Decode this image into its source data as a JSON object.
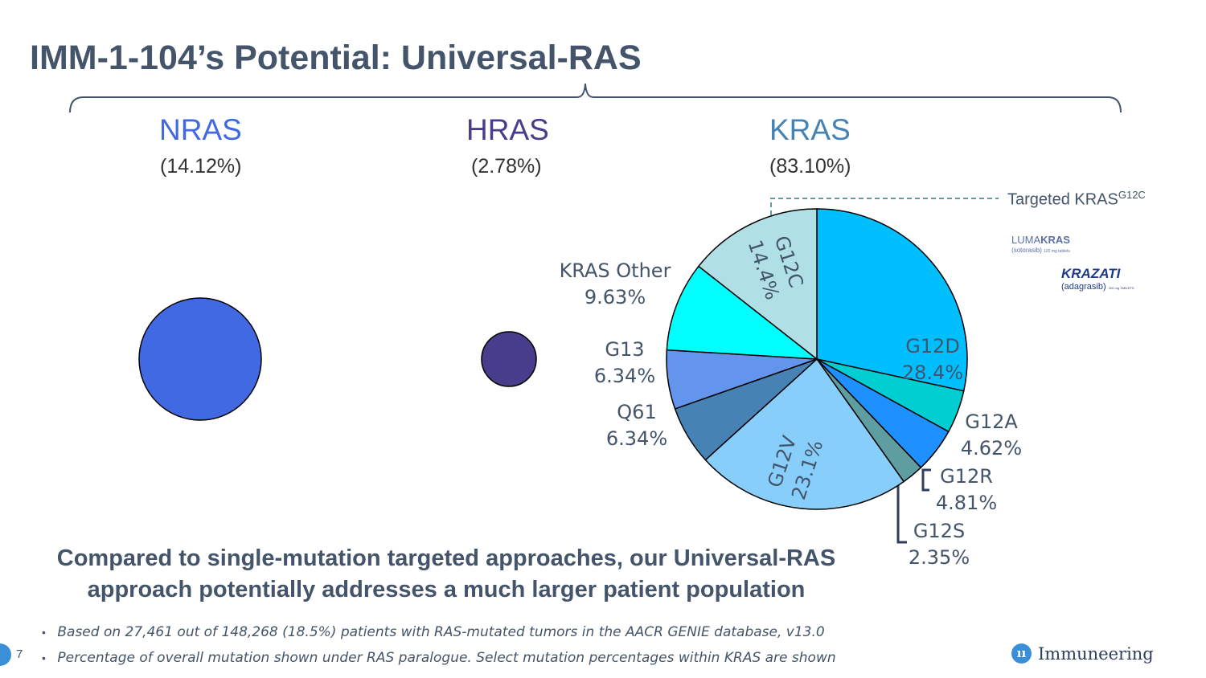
{
  "title": "IMM-1-104’s Potential: Universal-RAS",
  "paralogues": [
    {
      "name": "NRAS",
      "pct": "(14.12%)",
      "color": "#4169e1"
    },
    {
      "name": "HRAS",
      "pct": "(2.78%)",
      "color": "#483d8b"
    },
    {
      "name": "KRAS",
      "pct": "(83.10%)",
      "color": "#4682b4"
    }
  ],
  "targeted": {
    "text": "Targeted KRAS",
    "sup": "G12C"
  },
  "brands": {
    "lumakras_a": "LUMA",
    "lumakras_b": "KRAS",
    "lumakras_sub": "(sotorasib)",
    "lumakras_dose": "120 mg tablets",
    "krazati": "KRAZATI",
    "krazati_sub": "(adagrasib)",
    "krazati_dose": "200 mg TABLETS"
  },
  "chart_data": {
    "type": "pie",
    "title": "",
    "start": "12 o'clock, clockwise",
    "slices": [
      {
        "label": "G12D",
        "value": 28.4,
        "text": "28.4%",
        "color": "#00bfff"
      },
      {
        "label": "G12A",
        "value": 4.62,
        "text": "4.62%",
        "color": "#00ced1"
      },
      {
        "label": "G12R",
        "value": 4.81,
        "text": "4.81%",
        "color": "#1e90ff"
      },
      {
        "label": "G12S",
        "value": 2.35,
        "text": "2.35%",
        "color": "#5f9ea0"
      },
      {
        "label": "G12V",
        "value": 23.1,
        "text": "23.1%",
        "color": "#87cefa"
      },
      {
        "label": "Q61",
        "value": 6.34,
        "text": "6.34%",
        "color": "#4682b4"
      },
      {
        "label": "G13",
        "value": 6.34,
        "text": "6.34%",
        "color": "#6495ed"
      },
      {
        "label": "KRAS Other",
        "value": 9.63,
        "text": "9.63%",
        "color": "#00ffff"
      },
      {
        "label": "G12C",
        "value": 14.4,
        "text": "14.4%",
        "color": "#b0e0e6"
      }
    ]
  },
  "headline": "Compared to single-mutation targeted approaches, our Universal-RAS approach potentially addresses a much larger patient population",
  "notes": [
    "Based on 27,461 out of 148,268 (18.5%) patients with RAS-mutated tumors in the AACR GENIE database, v13.0",
    "Percentage of overall mutation shown under RAS paralogue. Select mutation percentages within KRAS are shown"
  ],
  "bullet": "•",
  "page_number": "7",
  "company": "Immuneering",
  "company_mark": "ıı"
}
